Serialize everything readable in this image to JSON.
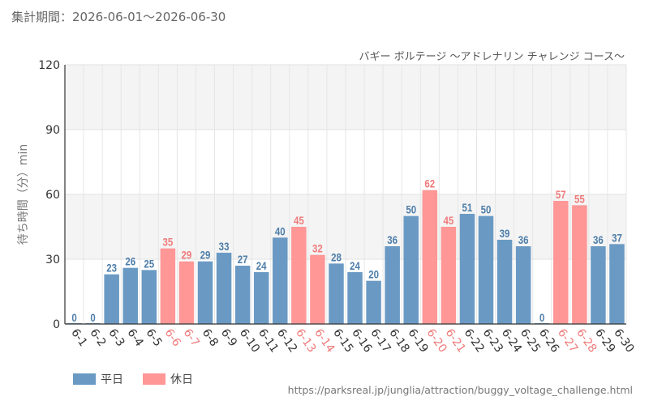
{
  "header": {
    "period_label": "集計期間：2026-06-01～2026-06-30"
  },
  "footer": {
    "source_url": "https://parksreal.jp/junglia/attraction/buggy_voltage_challenge.html"
  },
  "colors": {
    "weekday": "#6a9ac4",
    "holiday": "#ff9797",
    "holiday_text": "#f07a7a",
    "weekday_text": "#4d7da8"
  },
  "chart_data": {
    "type": "bar",
    "title": "バギー ボルテージ ～アドレナリン チャレンジ コース～",
    "xlabel": "",
    "ylabel": "待ち時間（分）min",
    "ylim": [
      0,
      120
    ],
    "yticks": [
      0,
      30,
      60,
      90,
      120
    ],
    "grid": true,
    "legend_position": "bottom-left",
    "categories": [
      "6-1",
      "6-2",
      "6-3",
      "6-4",
      "6-5",
      "6-6",
      "6-7",
      "6-8",
      "6-9",
      "6-10",
      "6-11",
      "6-12",
      "6-13",
      "6-14",
      "6-15",
      "6-16",
      "6-17",
      "6-18",
      "6-19",
      "6-20",
      "6-21",
      "6-22",
      "6-23",
      "6-24",
      "6-25",
      "6-26",
      "6-27",
      "6-28",
      "6-29",
      "6-30"
    ],
    "values": [
      0,
      0,
      23,
      26,
      25,
      35,
      29,
      29,
      33,
      27,
      24,
      40,
      45,
      32,
      28,
      24,
      20,
      36,
      50,
      62,
      45,
      51,
      50,
      39,
      36,
      0,
      57,
      55,
      36,
      37
    ],
    "day_type": [
      "weekday",
      "weekday",
      "weekday",
      "weekday",
      "weekday",
      "holiday",
      "holiday",
      "weekday",
      "weekday",
      "weekday",
      "weekday",
      "weekday",
      "holiday",
      "holiday",
      "weekday",
      "weekday",
      "weekday",
      "weekday",
      "weekday",
      "holiday",
      "holiday",
      "weekday",
      "weekday",
      "weekday",
      "weekday",
      "weekday",
      "holiday",
      "holiday",
      "weekday",
      "weekday"
    ],
    "series_legend": [
      {
        "key": "weekday",
        "name": "平日"
      },
      {
        "key": "holiday",
        "name": "休日"
      }
    ]
  }
}
